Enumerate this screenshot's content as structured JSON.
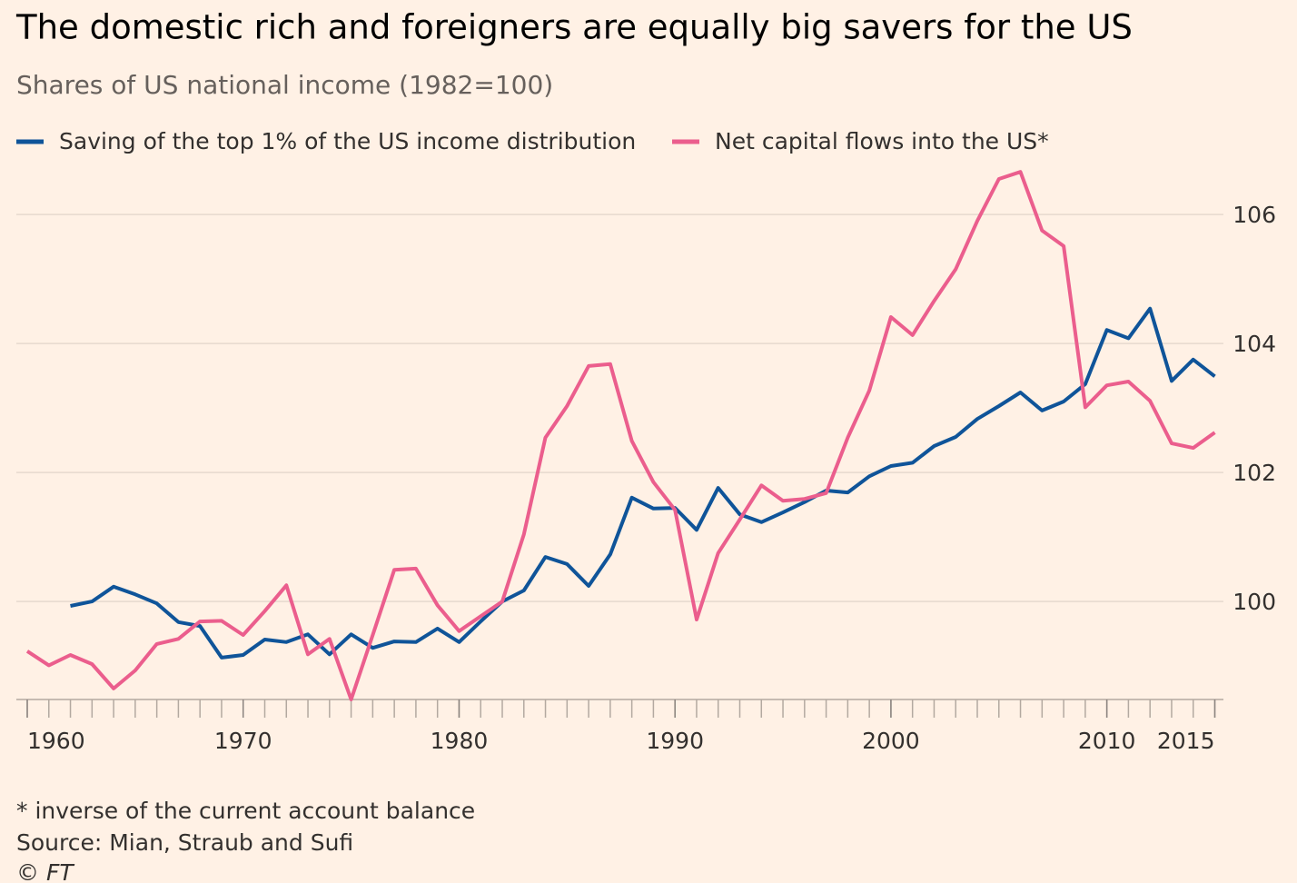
{
  "chart_data": {
    "type": "line",
    "title": "The domestic rich and foreigners are equally big savers for the US",
    "subtitle": "Shares of US national income (1982=100)",
    "x": [
      1960,
      1961,
      1962,
      1963,
      1964,
      1965,
      1966,
      1967,
      1968,
      1969,
      1970,
      1971,
      1972,
      1973,
      1974,
      1975,
      1976,
      1977,
      1978,
      1979,
      1980,
      1981,
      1982,
      1983,
      1984,
      1985,
      1986,
      1987,
      1988,
      1989,
      1990,
      1991,
      1992,
      1993,
      1994,
      1995,
      1996,
      1997,
      1998,
      1999,
      2000,
      2001,
      2002,
      2003,
      2004,
      2005,
      2006,
      2007,
      2008,
      2009,
      2010,
      2011,
      2012,
      2013,
      2014,
      2015
    ],
    "series": [
      {
        "name": "Saving of the top 1% of the US income distribution",
        "color": "#0f5499",
        "values": [
          null,
          null,
          99.93,
          100.0,
          100.23,
          100.11,
          99.97,
          99.68,
          99.62,
          99.13,
          99.17,
          99.41,
          99.37,
          99.49,
          99.18,
          99.49,
          99.28,
          99.38,
          99.37,
          99.58,
          99.37,
          99.69,
          100.0,
          100.17,
          100.69,
          100.58,
          100.24,
          100.73,
          101.61,
          101.44,
          101.45,
          101.11,
          101.76,
          101.35,
          101.23,
          101.38,
          101.54,
          101.72,
          101.69,
          101.94,
          102.1,
          102.15,
          102.41,
          102.55,
          102.83,
          103.03,
          103.24,
          102.96,
          103.1,
          103.37,
          104.21,
          104.08,
          104.54,
          103.42,
          103.75,
          103.49
        ]
      },
      {
        "name": "Net capital flows into the US*",
        "color": "#eb5e8d",
        "values": [
          99.23,
          99.01,
          99.17,
          99.03,
          98.65,
          98.93,
          99.34,
          99.42,
          99.69,
          99.7,
          99.48,
          99.85,
          100.25,
          99.18,
          99.42,
          98.48,
          99.48,
          100.49,
          100.51,
          99.94,
          99.54,
          99.77,
          100.0,
          101.04,
          102.54,
          103.03,
          103.65,
          103.68,
          102.49,
          101.85,
          101.42,
          99.72,
          100.75,
          101.27,
          101.8,
          101.56,
          101.59,
          101.68,
          102.54,
          103.27,
          104.41,
          104.13,
          104.66,
          105.15,
          105.9,
          106.55,
          106.66,
          105.75,
          105.51,
          103.01,
          103.35,
          103.41,
          103.11,
          102.45,
          102.38,
          102.62
        ]
      }
    ],
    "xlim": [
      1960,
      2015
    ],
    "xticks": [
      1960,
      1970,
      1980,
      1990,
      2000,
      2010,
      2015
    ],
    "ylim": [
      98.48,
      106.8
    ],
    "yticks": [
      100,
      102,
      104,
      106
    ],
    "grid": true,
    "notes": [
      "* inverse of the current account balance",
      "Source: Mian, Straub and Sufi",
      "© FT"
    ]
  }
}
